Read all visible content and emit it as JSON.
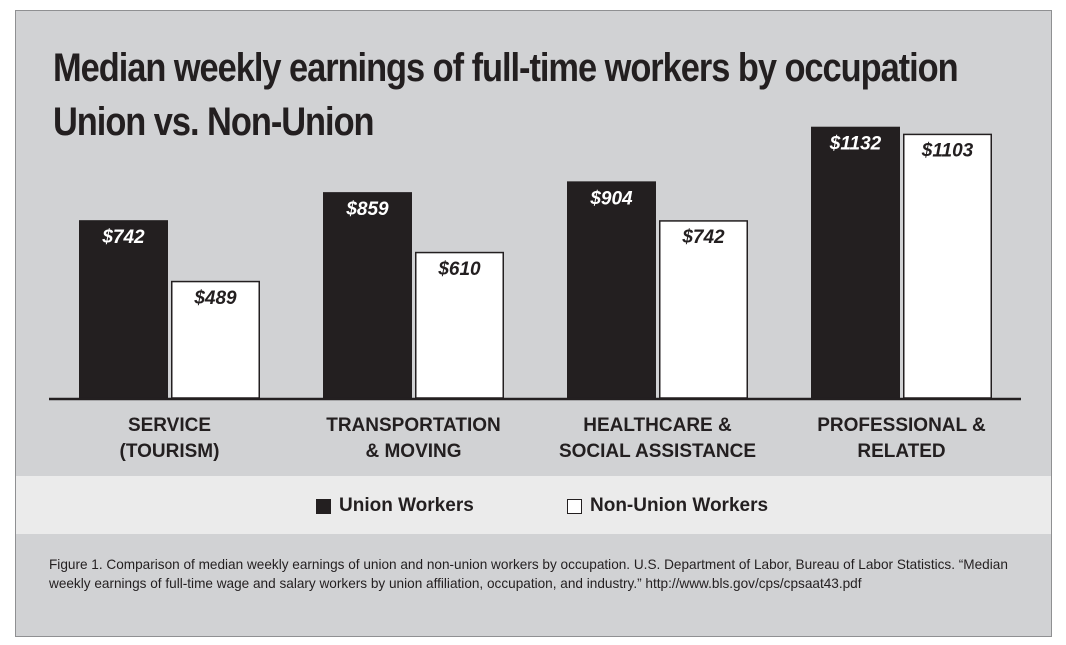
{
  "chart_data": {
    "type": "bar",
    "title": "Median weekly earnings of full-time workers by occupation",
    "subtitle": "Union vs. Non-Union",
    "categories": [
      [
        "SERVICE",
        "(TOURISM)"
      ],
      [
        "TRANSPORTATION",
        "& MOVING"
      ],
      [
        "HEALTHCARE &",
        "SOCIAL ASSISTANCE"
      ],
      [
        "PROFESSIONAL &",
        "RELATED"
      ]
    ],
    "series": [
      {
        "name": "Union Workers",
        "values": [
          742,
          859,
          904,
          1132
        ],
        "labels": [
          "$742",
          "$859",
          "$904",
          "$1132"
        ],
        "color": "#231f20"
      },
      {
        "name": "Non-Union Workers",
        "values": [
          489,
          610,
          742,
          1103
        ],
        "labels": [
          "$489",
          "$610",
          "$742",
          "$1103"
        ],
        "color": "#ffffff"
      }
    ],
    "ylim": [
      0,
      1160
    ],
    "grid": false,
    "legend": "bottom-center"
  },
  "caption": "Figure 1. Comparison of median weekly earnings of union and non-union workers by occupation. U.S. Department of Labor, Bureau of Labor Statistics. “Median weekly earnings of full-time wage and salary workers by union affiliation, occupation, and industry.” http://www.bls.gov/cps/cpsaat43.pdf",
  "colors": {
    "panel": "#d1d2d4",
    "legend_band": "#ebebeb",
    "ink": "#231f20"
  }
}
